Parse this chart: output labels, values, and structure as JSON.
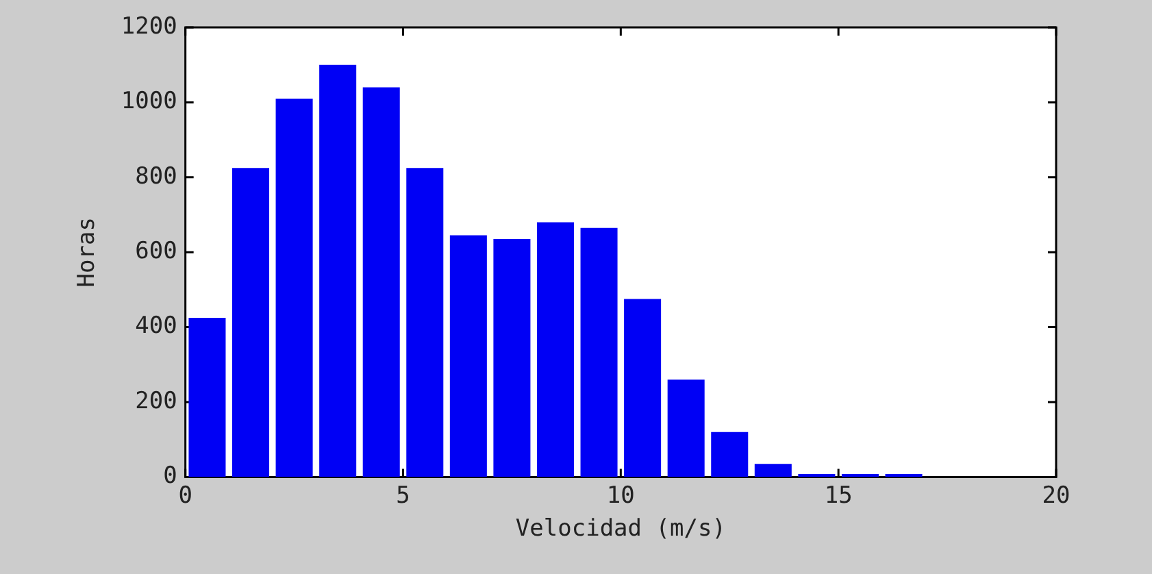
{
  "chart_data": {
    "type": "histogram",
    "xlabel": "Velocidad (m/s)",
    "ylabel": "Horas",
    "bins": [
      0,
      1,
      2,
      3,
      4,
      5,
      6,
      7,
      8,
      9,
      10,
      11,
      12,
      13,
      14,
      15,
      16,
      17
    ],
    "values": [
      425,
      825,
      1010,
      1100,
      1040,
      825,
      645,
      635,
      680,
      665,
      475,
      260,
      120,
      35,
      8,
      8,
      8
    ],
    "color": "#0000f5",
    "xlim": [
      0,
      20
    ],
    "xticks": [
      0,
      5,
      10,
      15,
      20
    ],
    "ylim": [
      0,
      1200
    ],
    "yticks": [
      0,
      200,
      400,
      600,
      800,
      1000,
      1200
    ],
    "grid": false
  }
}
